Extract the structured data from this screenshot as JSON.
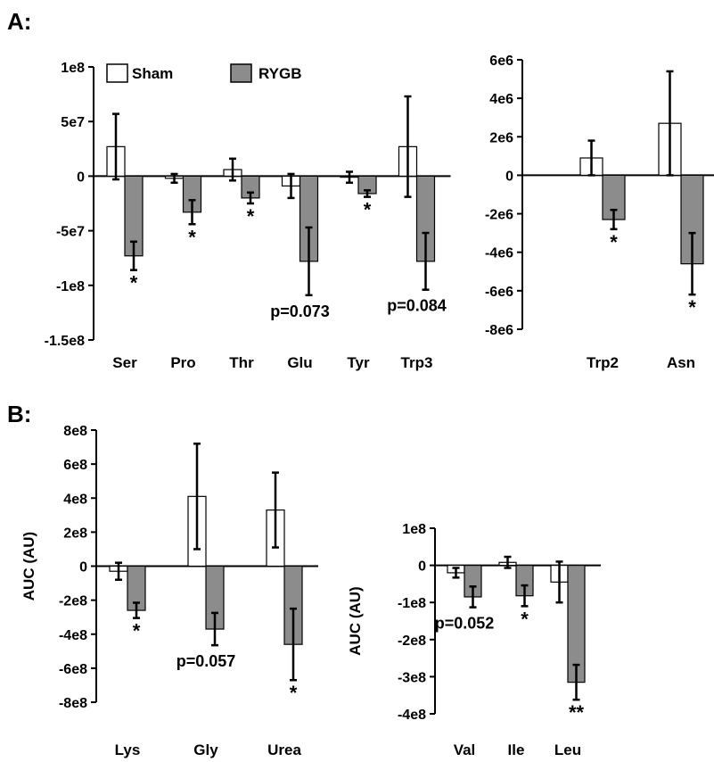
{
  "panels": {
    "a_label": "A:",
    "b_label": "B:"
  },
  "legend": {
    "sham_label": "Sham",
    "rygb_label": "RYGB"
  },
  "colors": {
    "sham_fill": "#ffffff",
    "rygb_fill": "#8c8c8c",
    "stroke": "#000000"
  },
  "chart_data": [
    {
      "type": "bar",
      "panel": "A",
      "title": "",
      "xlabel": "",
      "ylabel": "",
      "ylim": [
        -150000000,
        100000000
      ],
      "ytick_values": [
        100000000,
        50000000,
        0,
        -50000000,
        -100000000,
        -150000000
      ],
      "ytick_labels": [
        "1e8",
        "5e7",
        "0",
        "-5e7",
        "-1e8",
        "-1.5e8"
      ],
      "categories": [
        "Ser",
        "Pro",
        "Thr",
        "Glu",
        "Tyr",
        "Trp3"
      ],
      "series": [
        {
          "name": "Sham",
          "values": [
            27000000,
            -2000000,
            6000000,
            -9000000,
            -1000000,
            27000000
          ],
          "errors": [
            30000000,
            4000000,
            10000000,
            11000000,
            5000000,
            46000000
          ]
        },
        {
          "name": "RYGB",
          "values": [
            -73000000,
            -33000000,
            -20000000,
            -78000000,
            -16000000,
            -78000000
          ],
          "errors": [
            13000000,
            11000000,
            5000000,
            31000000,
            3000000,
            26000000
          ]
        }
      ],
      "annotations": [
        "*",
        "*",
        "*",
        "p=0.073",
        "*",
        "p=0.084"
      ]
    },
    {
      "type": "bar",
      "panel": "A",
      "title": "",
      "xlabel": "",
      "ylabel": "",
      "ylim": [
        -8000000,
        6000000
      ],
      "ytick_values": [
        6000000,
        4000000,
        2000000,
        0,
        -2000000,
        -4000000,
        -6000000,
        -8000000
      ],
      "ytick_labels": [
        "6e6",
        "4e6",
        "2e6",
        "0",
        "-2e6",
        "-4e6",
        "-6e6",
        "-8e6"
      ],
      "categories": [
        "Trp2",
        "Asn"
      ],
      "series": [
        {
          "name": "Sham",
          "values": [
            900000,
            2700000
          ],
          "errors": [
            900000,
            2700000
          ]
        },
        {
          "name": "RYGB",
          "values": [
            -2300000,
            -4600000
          ],
          "errors": [
            500000,
            1600000
          ]
        }
      ],
      "annotations": [
        "*",
        "*"
      ]
    },
    {
      "type": "bar",
      "panel": "B",
      "title": "",
      "xlabel": "",
      "ylabel": "AUC (AU)",
      "ylim": [
        -800000000,
        800000000
      ],
      "ytick_values": [
        800000000,
        600000000,
        400000000,
        200000000,
        0,
        -200000000,
        -400000000,
        -600000000,
        -800000000
      ],
      "ytick_labels": [
        "8e8",
        "6e8",
        "4e8",
        "2e8",
        "0",
        "-2e8",
        "-4e8",
        "-6e8",
        "-8e8"
      ],
      "categories": [
        "Lys",
        "Gly",
        "Urea"
      ],
      "series": [
        {
          "name": "Sham",
          "values": [
            -30000000,
            410000000,
            330000000
          ],
          "errors": [
            50000000,
            310000000,
            220000000
          ]
        },
        {
          "name": "RYGB",
          "values": [
            -260000000,
            -370000000,
            -460000000
          ],
          "errors": [
            45000000,
            95000000,
            210000000
          ]
        }
      ],
      "annotations": [
        "*",
        "p=0.057",
        "*"
      ]
    },
    {
      "type": "bar",
      "panel": "B",
      "title": "",
      "xlabel": "",
      "ylabel": "AUC (AU)",
      "ylim": [
        -400000000,
        100000000
      ],
      "ytick_values": [
        100000000,
        0,
        -100000000,
        -200000000,
        -300000000,
        -400000000
      ],
      "ytick_labels": [
        "1e8",
        "0",
        "-1e8",
        "-2e8",
        "-3e8",
        "-4e8"
      ],
      "categories": [
        "Val",
        "Ile",
        "Leu"
      ],
      "series": [
        {
          "name": "Sham",
          "values": [
            -20000000,
            8000000,
            -45000000
          ],
          "errors": [
            13000000,
            15000000,
            55000000
          ]
        },
        {
          "name": "RYGB",
          "values": [
            -85000000,
            -82000000,
            -315000000
          ],
          "errors": [
            28000000,
            28000000,
            47000000
          ]
        }
      ],
      "annotations": [
        "p=0.052",
        "*",
        "**"
      ]
    }
  ]
}
